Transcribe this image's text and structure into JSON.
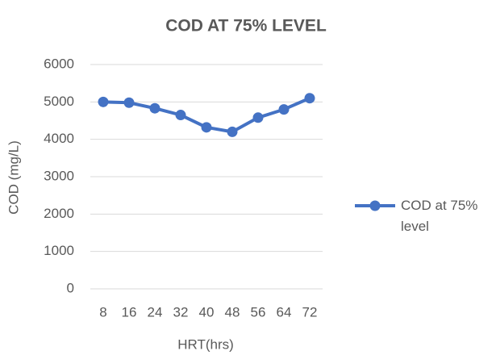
{
  "chart_data": {
    "type": "line",
    "title": "COD AT 75% LEVEL",
    "x_label": "HRT(hrs)",
    "y_label": "COD (mg/L)",
    "categories": [
      "8",
      "16",
      "24",
      "32",
      "40",
      "48",
      "56",
      "64",
      "72"
    ],
    "series": [
      {
        "name": "COD at 75% level",
        "color": "#4472c4",
        "values": [
          5000,
          4980,
          4830,
          4650,
          4320,
          4200,
          4580,
          4800,
          5100
        ]
      }
    ],
    "ylim": [
      0,
      6000
    ],
    "yticks": [
      0,
      1000,
      2000,
      3000,
      4000,
      5000,
      6000
    ],
    "grid": true,
    "legend": "right"
  }
}
